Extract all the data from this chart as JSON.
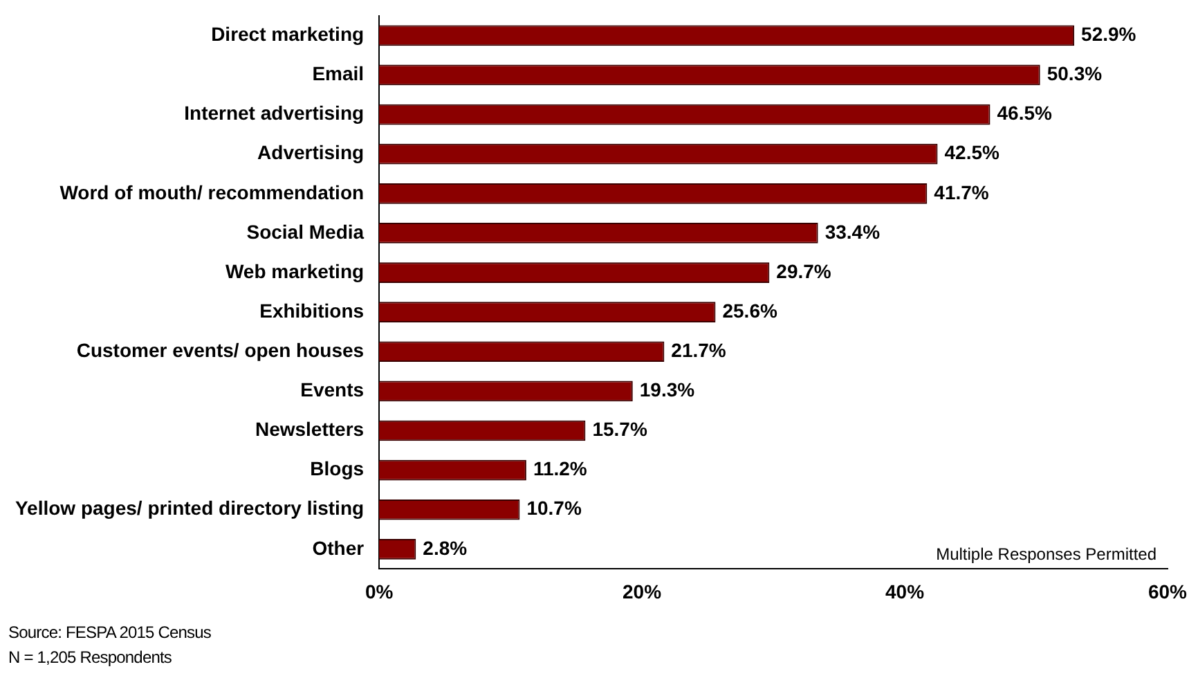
{
  "chart_data": {
    "type": "bar",
    "orientation": "horizontal",
    "categories": [
      "Direct marketing",
      "Email",
      "Internet advertising",
      "Advertising",
      "Word of mouth/ recommendation",
      "Social Media",
      "Web marketing",
      "Exhibitions",
      "Customer events/ open houses",
      "Events",
      "Newsletters",
      "Blogs",
      "Yellow pages/ printed directory listing",
      "Other"
    ],
    "values": [
      52.9,
      50.3,
      46.5,
      42.5,
      41.7,
      33.4,
      29.7,
      25.6,
      21.7,
      19.3,
      15.7,
      11.2,
      10.7,
      2.8
    ],
    "value_labels": [
      "52.9%",
      "50.3%",
      "46.5%",
      "42.5%",
      "41.7%",
      "33.4%",
      "29.7%",
      "25.6%",
      "21.7%",
      "19.3%",
      "15.7%",
      "11.2%",
      "10.7%",
      "2.8%"
    ],
    "color": "#8b0000",
    "xlim": [
      0,
      60
    ],
    "xticks": [
      {
        "value": 0,
        "label": "0%"
      },
      {
        "value": 20,
        "label": "20%"
      },
      {
        "value": 40,
        "label": "40%"
      },
      {
        "value": 60,
        "label": "60%"
      }
    ],
    "grid": false,
    "legend": false,
    "annotations": [
      "Multiple Responses Permitted",
      "Source: FESPA 2015 Census",
      "N = 1,205 Respondents"
    ]
  }
}
